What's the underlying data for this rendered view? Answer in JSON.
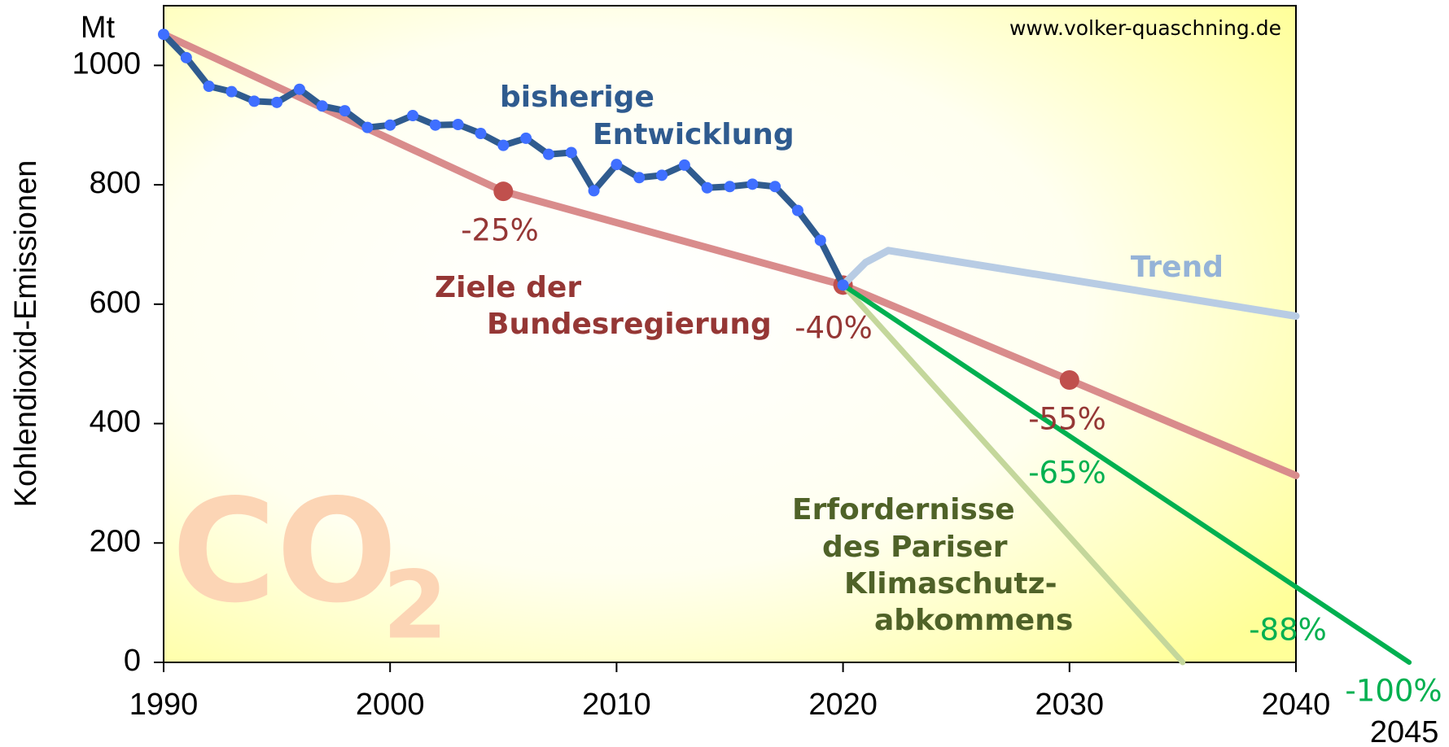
{
  "chart_data": {
    "type": "line",
    "y_label": "Kohlendioxid-Emissionen",
    "y_unit": "Mt",
    "source": "www.volker-quaschning.de",
    "watermark": "CO",
    "watermark_sub": "2",
    "xlim": [
      1990,
      2040
    ],
    "xticks": [
      1990,
      2000,
      2010,
      2020,
      2030,
      2040
    ],
    "xtick_extra": 2045,
    "ylim": [
      0,
      1100
    ],
    "yticks": [
      0,
      200,
      400,
      600,
      800,
      1000
    ],
    "series": [
      {
        "color": "#d98c8c",
        "width": 9,
        "markers": [
          false,
          true,
          true,
          true,
          false
        ],
        "marker_color": "#c0504d",
        "x": [
          1990,
          2005,
          2020,
          2030,
          2040
        ],
        "values": [
          1052,
          789,
          632,
          473,
          313
        ]
      },
      {
        "color": "#b8cce4",
        "width": 9,
        "x": [
          2020,
          2021,
          2022,
          2040
        ],
        "values": [
          632,
          670,
          690,
          580
        ]
      },
      {
        "color": "#c4d79b",
        "width": 7,
        "x": [
          2020,
          2035
        ],
        "values": [
          632,
          0
        ]
      },
      {
        "color": "#00b050",
        "width": 6,
        "x": [
          2020,
          2045
        ],
        "values": [
          632,
          0
        ]
      },
      {
        "color": "#2f5b8f",
        "width": 8,
        "marker_color": "#3f6fff",
        "markers": true,
        "x": [
          1990,
          1991,
          1992,
          1993,
          1994,
          1995,
          1996,
          1997,
          1998,
          1999,
          2000,
          2001,
          2002,
          2003,
          2004,
          2005,
          2006,
          2007,
          2008,
          2009,
          2010,
          2011,
          2012,
          2013,
          2014,
          2015,
          2016,
          2017,
          2018,
          2019,
          2020
        ],
        "values": [
          1052,
          1013,
          965,
          956,
          940,
          938,
          960,
          932,
          924,
          896,
          900,
          916,
          900,
          901,
          886,
          866,
          878,
          851,
          854,
          790,
          834,
          812,
          816,
          833,
          795,
          797,
          801,
          797,
          757,
          707,
          632
        ]
      }
    ],
    "annotations": [
      {
        "text": "bisherige",
        "color": "#2f5b8f",
        "bold": true
      },
      {
        "text": "Entwicklung",
        "color": "#2f5b8f",
        "bold": true
      },
      {
        "text": "Ziele der",
        "color": "#953735",
        "bold": true
      },
      {
        "text": "Bundesregierung",
        "color": "#953735",
        "bold": true
      },
      {
        "text": "Trend",
        "color": "#95b3d7",
        "bold": true
      },
      {
        "text": "-25%",
        "color": "#953735"
      },
      {
        "text": "-40%",
        "color": "#953735"
      },
      {
        "text": "-55%",
        "color": "#953735"
      },
      {
        "text": "-65%",
        "color": "#00b050"
      },
      {
        "text": "-88%",
        "color": "#00b050"
      },
      {
        "text": "-100%",
        "color": "#00b050"
      },
      {
        "text": "Erfordernisse",
        "color": "#4f6228",
        "bold": true
      },
      {
        "text": "des Pariser",
        "color": "#4f6228",
        "bold": true
      },
      {
        "text": "Klimaschutz-",
        "color": "#4f6228",
        "bold": true
      },
      {
        "text": "abkommens",
        "color": "#4f6228",
        "bold": true
      }
    ]
  }
}
